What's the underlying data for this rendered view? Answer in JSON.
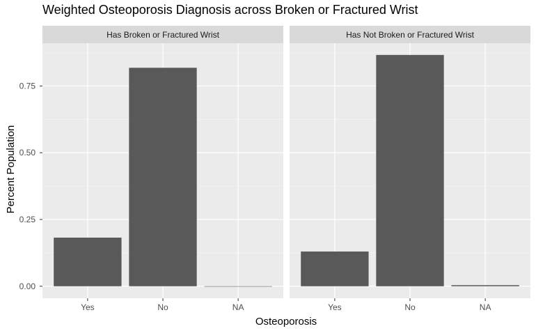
{
  "title": "Weighted Osteoporosis Diagnosis across Broken or Fractured Wrist",
  "chart_data": {
    "type": "bar",
    "title": "Weighted Osteoporosis Diagnosis across Broken or Fractured Wrist",
    "xlabel": "Osteoporosis",
    "ylabel": "Percent Population",
    "categories": [
      "Yes",
      "No",
      "NA"
    ],
    "ylim": [
      -0.045,
      0.91
    ],
    "yticks": [
      "0.00",
      "0.25",
      "0.50",
      "0.75"
    ],
    "ytick_values": [
      0,
      0.25,
      0.5,
      0.75
    ],
    "grid": true,
    "bar_color": "#595959",
    "panel_bg": "#ebebeb",
    "strip_bg": "#d9d9d9",
    "facets": [
      {
        "name": "Has Broken or Fractured Wrist",
        "values": [
          0.182,
          0.818,
          0.0
        ]
      },
      {
        "name": "Has Not Broken or Fractured Wrist",
        "values": [
          0.13,
          0.866,
          0.004
        ]
      }
    ]
  }
}
